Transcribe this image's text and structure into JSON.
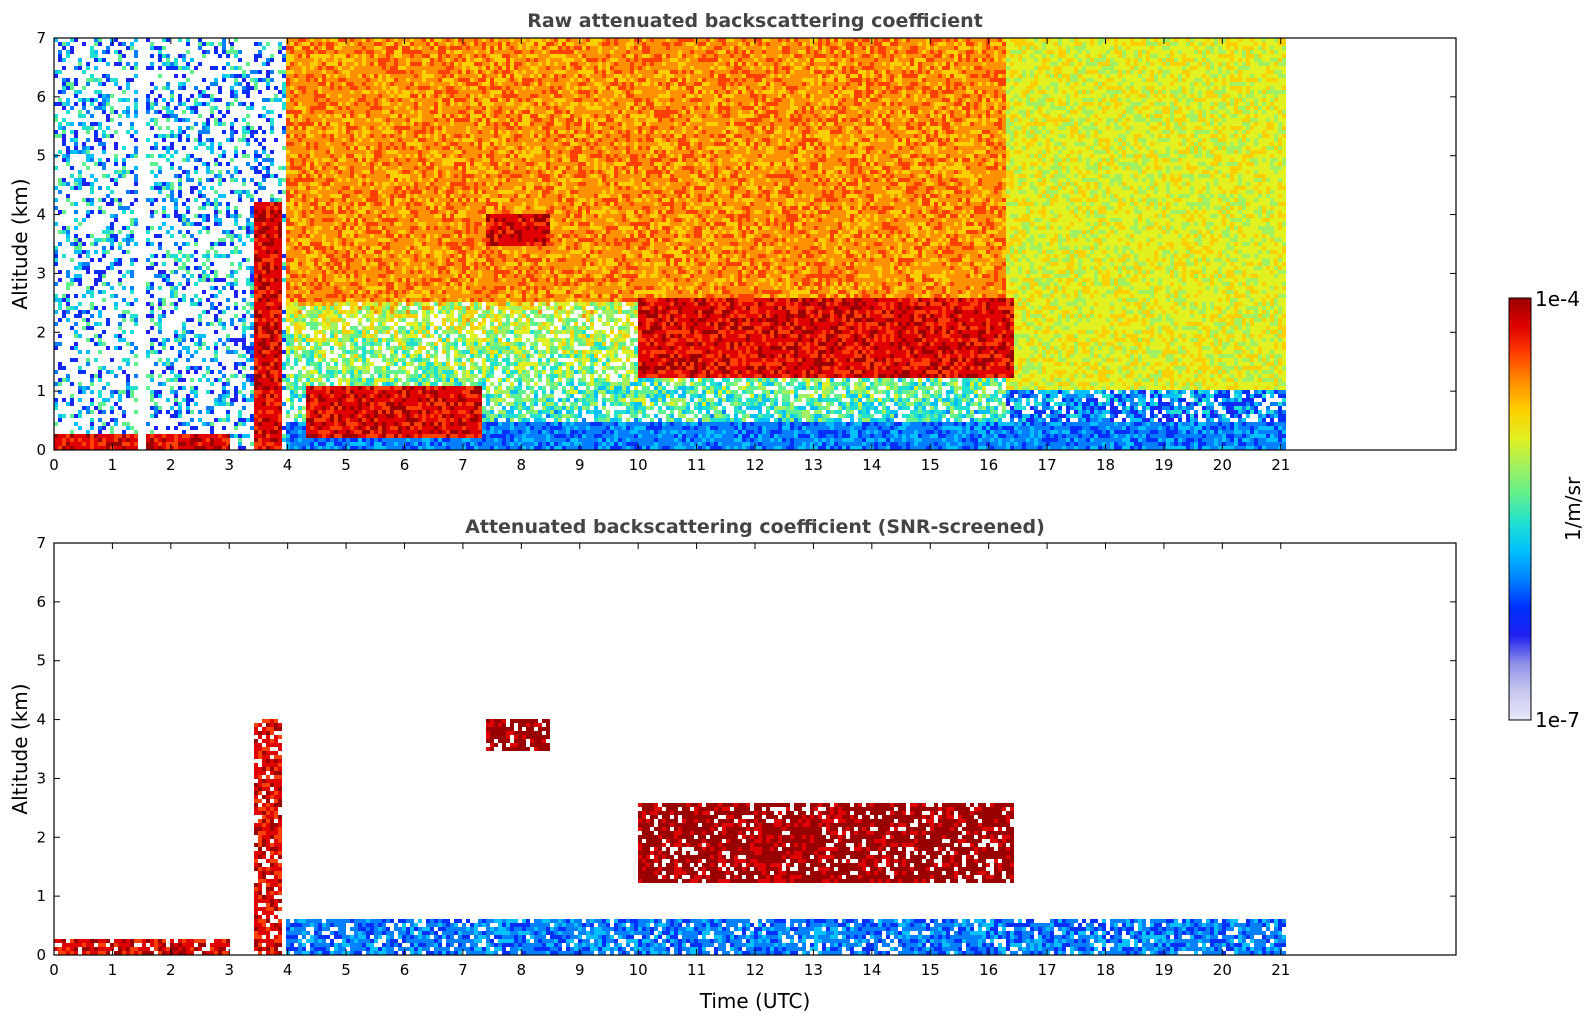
{
  "chart_data": [
    {
      "type": "heatmap",
      "title": "Raw attenuated backscattering coefficient",
      "xlabel": "",
      "ylabel": "Altitude (km)",
      "xlim": [
        0,
        24
      ],
      "ylim": [
        0,
        7
      ],
      "xticks": [
        "0",
        "1",
        "2",
        "3",
        "4",
        "5",
        "6",
        "7",
        "8",
        "9",
        "10",
        "11",
        "12",
        "13",
        "14",
        "15",
        "16",
        "17",
        "18",
        "19",
        "20",
        "21"
      ],
      "yticks": [
        "0",
        "1",
        "2",
        "3",
        "4",
        "5",
        "6",
        "7"
      ],
      "data_extent_hours": [
        0,
        21.15
      ],
      "screened": false,
      "features": [
        {
          "name": "surface layer",
          "x": [
            0,
            3.0
          ],
          "y": [
            0,
            0.25
          ],
          "level": "high"
        },
        {
          "name": "data gap",
          "x": [
            1.45,
            1.6
          ],
          "y": [
            0,
            7
          ],
          "level": "none"
        },
        {
          "name": "rain streak",
          "x": [
            3.4,
            3.9
          ],
          "y": [
            0,
            4.2
          ],
          "level": "high"
        },
        {
          "name": "boundary layer",
          "x": [
            4.0,
            21.15
          ],
          "y": [
            0,
            0.5
          ],
          "level": "low"
        },
        {
          "name": "aerosol layer",
          "x": [
            4.3,
            7.3
          ],
          "y": [
            0.2,
            1.1
          ],
          "level": "high"
        },
        {
          "name": "cloud 3.9 km",
          "x": [
            7.4,
            8.5
          ],
          "y": [
            3.5,
            4.0
          ],
          "level": "high"
        },
        {
          "name": "clouds 1.5-2.6 km",
          "x": [
            10.0,
            16.4
          ],
          "y": [
            1.2,
            2.6
          ],
          "level": "high"
        },
        {
          "name": "daytime noise",
          "x": [
            4.0,
            16.3
          ],
          "y": [
            2.5,
            7
          ],
          "level": "mid-high"
        },
        {
          "name": "night noise",
          "x": [
            16.3,
            21.15
          ],
          "y": [
            1.0,
            7
          ],
          "level": "mid"
        }
      ]
    },
    {
      "type": "heatmap",
      "title": "Attenuated backscattering coefficient (SNR-screened)",
      "xlabel": "Time (UTC)",
      "ylabel": "Altitude (km)",
      "xlim": [
        0,
        24
      ],
      "ylim": [
        0,
        7
      ],
      "xticks": [
        "0",
        "1",
        "2",
        "3",
        "4",
        "5",
        "6",
        "7",
        "8",
        "9",
        "10",
        "11",
        "12",
        "13",
        "14",
        "15",
        "16",
        "17",
        "18",
        "19",
        "20",
        "21"
      ],
      "yticks": [
        "0",
        "1",
        "2",
        "3",
        "4",
        "5",
        "6",
        "7"
      ],
      "data_extent_hours": [
        0,
        21.15
      ],
      "screened": true,
      "features": [
        {
          "name": "surface layer",
          "x": [
            0,
            3.0
          ],
          "y": [
            0,
            0.25
          ],
          "level": "high"
        },
        {
          "name": "rain streak",
          "x": [
            3.4,
            3.9
          ],
          "y": [
            0,
            4.0
          ],
          "level": "high"
        },
        {
          "name": "boundary layer",
          "x": [
            4.0,
            21.15
          ],
          "y": [
            0,
            0.6
          ],
          "level": "low"
        },
        {
          "name": "cloud 3.9 km",
          "x": [
            7.4,
            8.5
          ],
          "y": [
            3.5,
            4.0
          ],
          "level": "very-high"
        },
        {
          "name": "clouds 1.5-2.6 km",
          "x": [
            10.0,
            16.4
          ],
          "y": [
            1.2,
            2.6
          ],
          "level": "very-high"
        }
      ]
    }
  ],
  "colorbar": {
    "max_label": "1e-4",
    "min_label": "1e-7",
    "unit_label": "1/m/sr",
    "colors": [
      "#e8e8f8",
      "#c8c8f0",
      "#9090e8",
      "#2020f0",
      "#0030ff",
      "#0080ff",
      "#00c0ff",
      "#20e0d0",
      "#60f090",
      "#a0f060",
      "#e0f020",
      "#ffd000",
      "#ff9000",
      "#ff4000",
      "#e00000",
      "#9a0000"
    ]
  }
}
